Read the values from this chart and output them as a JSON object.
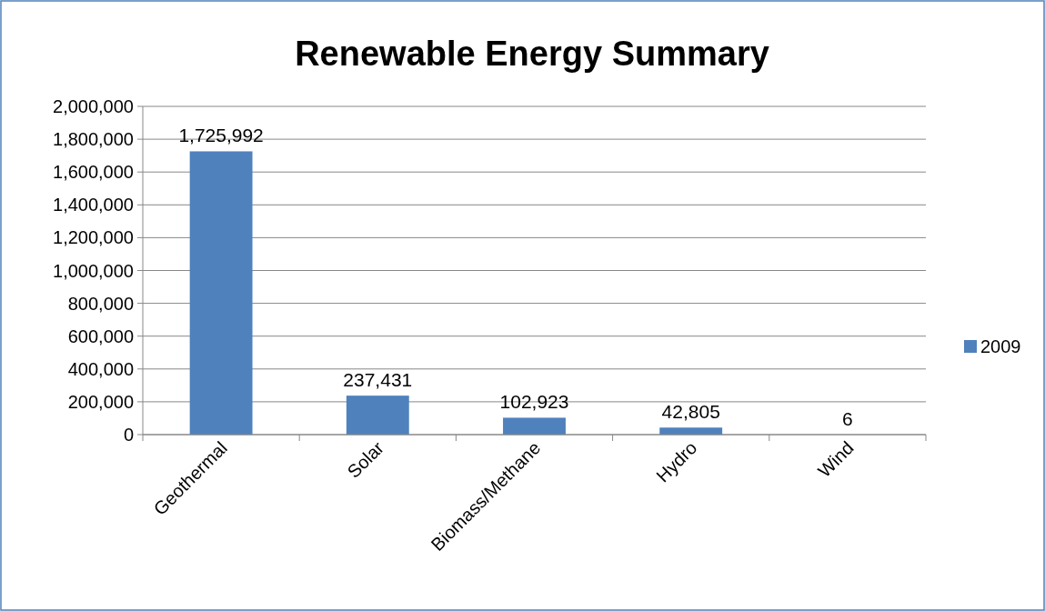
{
  "chart_data": {
    "type": "bar",
    "title": "Renewable Energy Summary",
    "categories": [
      "Geothermal",
      "Solar",
      "Biomass/Methane",
      "Hydro",
      "Wind"
    ],
    "series": [
      {
        "name": "2009",
        "color": "#4f81bd",
        "values": [
          1725992,
          237431,
          102923,
          42805,
          6
        ]
      }
    ],
    "ylim": [
      0,
      2000000
    ],
    "yticks": [
      {
        "value": 0,
        "label": "0"
      },
      {
        "value": 200000,
        "label": "200,000"
      },
      {
        "value": 400000,
        "label": "400,000"
      },
      {
        "value": 600000,
        "label": "600,000"
      },
      {
        "value": 800000,
        "label": "800,000"
      },
      {
        "value": 1000000,
        "label": "1,000,000"
      },
      {
        "value": 1200000,
        "label": "1,200,000"
      },
      {
        "value": 1400000,
        "label": "1,400,000"
      },
      {
        "value": 1600000,
        "label": "1,600,000"
      },
      {
        "value": 1800000,
        "label": "1,800,000"
      },
      {
        "value": 2000000,
        "label": "2,000,000"
      }
    ],
    "value_labels": [
      "1,725,992",
      "237,431",
      "102,923",
      "42,805",
      "6"
    ],
    "grid": "y",
    "legend": "right"
  }
}
